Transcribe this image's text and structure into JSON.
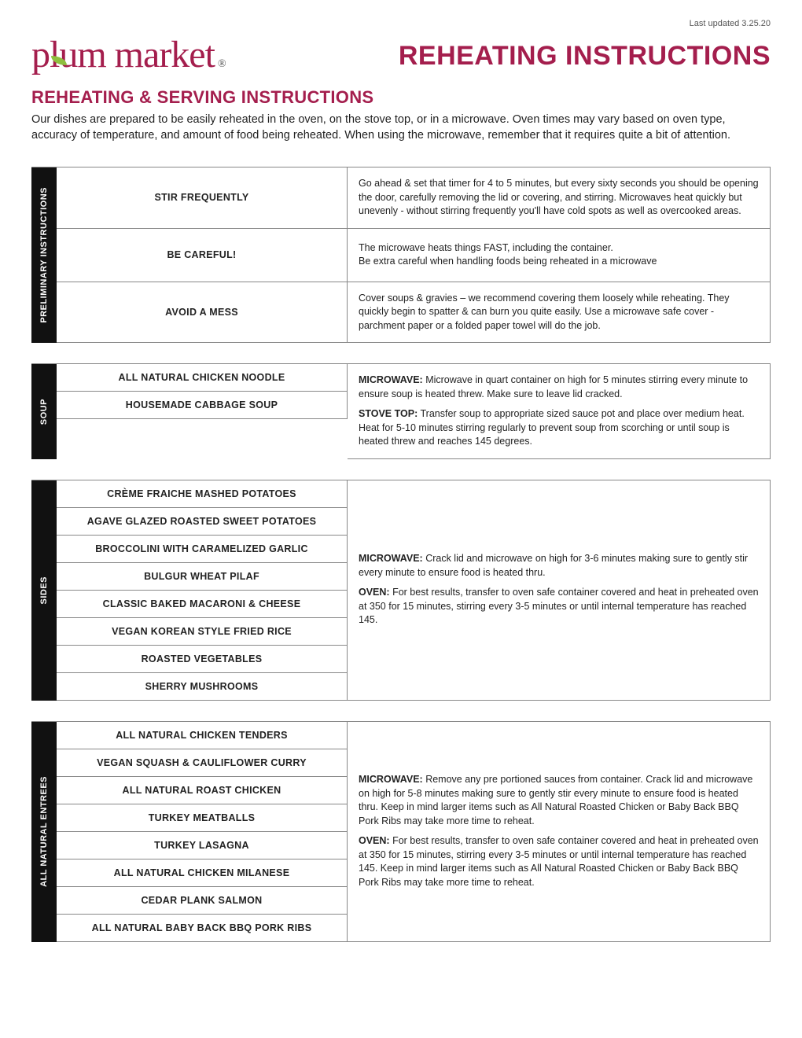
{
  "updated": "Last updated 3.25.20",
  "logo_text1": "pl",
  "logo_text2": "um market",
  "logo_reg": "®",
  "main_title": "REHEATING INSTRUCTIONS",
  "subtitle": "REHEATING & SERVING INSTRUCTIONS",
  "intro": "Our dishes are prepared to be easily reheated in the oven, on the stove top, or in a microwave. Oven times may vary based on oven type, accuracy of temperature, and amount of food being reheated. When using the microwave, remember that it requires quite a bit of attention.",
  "sections": {
    "prelim": {
      "label": "PRELIMINARY INSTRUCTIONS",
      "rows": [
        {
          "item": "STIR FREQUENTLY",
          "desc": "Go ahead & set that timer for 4 to 5 minutes, but every sixty seconds you should be opening the door, carefully removing the lid or covering, and stirring. Microwaves heat quickly but unevenly - without stirring frequently you'll have cold spots as well as overcooked areas."
        },
        {
          "item": "BE CAREFUL!",
          "desc": "The microwave heats things FAST, including the container.\nBe extra careful when handling foods being reheated in a microwave"
        },
        {
          "item": "AVOID A MESS",
          "desc": "Cover soups & gravies – we recommend covering them loosely while reheating. They quickly begin to spatter & can burn you quite easily. Use a microwave safe cover - parchment paper or a folded paper towel will do the job."
        }
      ]
    },
    "soup": {
      "label": "SOUP",
      "items": [
        "ALL NATURAL CHICKEN NOODLE",
        "HOUSEMADE CABBAGE SOUP"
      ],
      "desc_parts": [
        {
          "b": "MICROWAVE:",
          "t": " Microwave in quart container on high for 5 minutes stirring every minute to ensure soup is heated threw. Make sure to leave lid cracked."
        },
        {
          "b": "STOVE TOP:",
          "t": " Transfer soup to appropriate sized sauce pot and place over medium heat. Heat for 5-10 minutes stirring regularly to prevent soup from scorching or until soup is heated threw and reaches 145 degrees."
        }
      ]
    },
    "sides": {
      "label": "SIDES",
      "items": [
        "CRÈME FRAICHE MASHED POTATOES",
        "AGAVE GLAZED ROASTED SWEET POTATOES",
        "BROCCOLINI WITH CARAMELIZED GARLIC",
        "BULGUR WHEAT PILAF",
        "CLASSIC BAKED MACARONI & CHEESE",
        "VEGAN KOREAN STYLE FRIED RICE",
        "ROASTED VEGETABLES",
        "SHERRY MUSHROOMS"
      ],
      "desc_parts": [
        {
          "b": "MICROWAVE:",
          "t": " Crack lid and microwave on high for 3-6 minutes making sure to gently stir every minute to ensure food is heated thru."
        },
        {
          "b": "OVEN:",
          "t": " For best results, transfer to oven safe container covered and heat in preheated oven at 350 for 15 minutes, stirring every 3-5 minutes or until internal temperature has reached 145."
        }
      ]
    },
    "entrees": {
      "label": "ALL NATURAL ENTREES",
      "items": [
        "ALL NATURAL CHICKEN TENDERS",
        "VEGAN SQUASH & CAULIFLOWER CURRY",
        "ALL NATURAL ROAST CHICKEN",
        "TURKEY MEATBALLS",
        "TURKEY LASAGNA",
        "ALL NATURAL CHICKEN MILANESE",
        "CEDAR PLANK SALMON",
        "ALL NATURAL BABY BACK BBQ PORK RIBS"
      ],
      "desc_parts": [
        {
          "b": "MICROWAVE:",
          "t": " Remove any pre portioned sauces from container. Crack lid and microwave on high for 5-8 minutes making sure to gently stir every minute to ensure food is heated thru. Keep in mind larger items such as All Natural Roasted Chicken or Baby Back BBQ Pork Ribs may take more time to reheat."
        },
        {
          "b": "OVEN:",
          "t": " For best results, transfer to oven safe container covered and heat in preheated oven at 350 for 15 minutes, stirring every 3-5 minutes or until internal temperature has reached 145. Keep in mind larger items such as All Natural Roasted Chicken or Baby Back BBQ Pork Ribs may take more time to reheat."
        }
      ]
    }
  },
  "colors": {
    "brand": "#a41e4d",
    "leaf": "#8fbf3f",
    "label_bg": "#111111",
    "border": "#888888",
    "text": "#222222"
  }
}
